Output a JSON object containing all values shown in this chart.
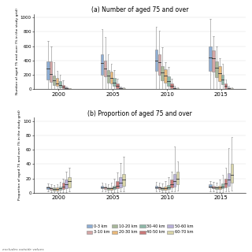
{
  "title_a": "(a) Number of aged 75 and over",
  "title_b": "(b) Proportion of aged 75 and over",
  "ylabel_a": "Number of aged 75 and over (% in the study grid)",
  "ylabel_b": "Proportion of aged 75 and over (% in the study grid)",
  "years": [
    2000,
    2005,
    2010,
    2015
  ],
  "categories": [
    "0-3 km",
    "3-10 km",
    "10-20 km",
    "20-30 km",
    "30-40 km",
    "40-50 km",
    "50-60 km",
    "60-70 km"
  ],
  "colors": [
    "#8dadd4",
    "#d4a5a5",
    "#a8b89a",
    "#e8b87a",
    "#8fb8a8",
    "#c87878",
    "#b8b0d8",
    "#d8d4a8"
  ],
  "footnote": "excludes outside values",
  "num_cats": 8,
  "boxes_a": {
    "2000": [
      {
        "q1": 130,
        "med": 290,
        "q3": 390,
        "whislo": 0,
        "whishi": 670
      },
      {
        "q1": 100,
        "med": 210,
        "q3": 390,
        "whislo": 0,
        "whishi": 590
      },
      {
        "q1": 60,
        "med": 120,
        "q3": 190,
        "whislo": 0,
        "whishi": 370
      },
      {
        "q1": 40,
        "med": 80,
        "q3": 160,
        "whislo": 0,
        "whishi": 250
      },
      {
        "q1": 20,
        "med": 55,
        "q3": 110,
        "whislo": 0,
        "whishi": 200
      },
      {
        "q1": 10,
        "med": 30,
        "q3": 60,
        "whislo": 0,
        "whishi": 120
      },
      {
        "q1": 3,
        "med": 8,
        "q3": 18,
        "whislo": 0,
        "whishi": 30
      },
      {
        "q1": 1,
        "med": 3,
        "q3": 8,
        "whislo": 0,
        "whishi": 15
      }
    ],
    "2005": [
      {
        "q1": 200,
        "med": 360,
        "q3": 480,
        "whislo": 0,
        "whishi": 840
      },
      {
        "q1": 180,
        "med": 290,
        "q3": 400,
        "whislo": 0,
        "whishi": 730
      },
      {
        "q1": 90,
        "med": 190,
        "q3": 260,
        "whislo": 0,
        "whishi": 490
      },
      {
        "q1": 75,
        "med": 155,
        "q3": 240,
        "whislo": 0,
        "whishi": 350
      },
      {
        "q1": 40,
        "med": 90,
        "q3": 160,
        "whislo": 0,
        "whishi": 270
      },
      {
        "q1": 15,
        "med": 40,
        "q3": 80,
        "whislo": 0,
        "whishi": 140
      },
      {
        "q1": 4,
        "med": 10,
        "q3": 22,
        "whislo": 0,
        "whishi": 35
      },
      {
        "q1": 1,
        "med": 4,
        "q3": 10,
        "whislo": 0,
        "whishi": 18
      }
    ],
    "2010": [
      {
        "q1": 250,
        "med": 400,
        "q3": 550,
        "whislo": 0,
        "whishi": 870
      },
      {
        "q1": 200,
        "med": 370,
        "q3": 490,
        "whislo": 0,
        "whishi": 810
      },
      {
        "q1": 120,
        "med": 230,
        "q3": 320,
        "whislo": 0,
        "whishi": 580
      },
      {
        "q1": 90,
        "med": 190,
        "q3": 280,
        "whislo": 0,
        "whishi": 380
      },
      {
        "q1": 50,
        "med": 110,
        "q3": 180,
        "whislo": 0,
        "whishi": 310
      },
      {
        "q1": 15,
        "med": 40,
        "q3": 80,
        "whislo": 0,
        "whishi": 140
      },
      {
        "q1": 4,
        "med": 12,
        "q3": 25,
        "whislo": 0,
        "whishi": 40
      },
      {
        "q1": 1,
        "med": 4,
        "q3": 10,
        "whislo": 0,
        "whishi": 20
      }
    ],
    "2015": [
      {
        "q1": 250,
        "med": 440,
        "q3": 600,
        "whislo": 0,
        "whishi": 980
      },
      {
        "q1": 240,
        "med": 430,
        "q3": 540,
        "whislo": 0,
        "whishi": 740
      },
      {
        "q1": 170,
        "med": 300,
        "q3": 390,
        "whislo": 0,
        "whishi": 600
      },
      {
        "q1": 110,
        "med": 220,
        "q3": 320,
        "whislo": 0,
        "whishi": 430
      },
      {
        "q1": 70,
        "med": 130,
        "q3": 200,
        "whislo": 0,
        "whishi": 350
      },
      {
        "q1": 15,
        "med": 40,
        "q3": 80,
        "whislo": 0,
        "whishi": 130
      },
      {
        "q1": 4,
        "med": 12,
        "q3": 26,
        "whislo": 0,
        "whishi": 42
      },
      {
        "q1": 1,
        "med": 5,
        "q3": 12,
        "whislo": 0,
        "whishi": 22
      }
    ]
  },
  "boxes_b": {
    "2000": [
      {
        "q1": 5,
        "med": 7,
        "q3": 9,
        "whislo": 2,
        "whishi": 13
      },
      {
        "q1": 4,
        "med": 6,
        "q3": 8,
        "whislo": 1,
        "whishi": 12
      },
      {
        "q1": 3,
        "med": 5,
        "q3": 7,
        "whislo": 1,
        "whishi": 11
      },
      {
        "q1": 3,
        "med": 5,
        "q3": 7,
        "whislo": 1,
        "whishi": 12
      },
      {
        "q1": 4,
        "med": 6,
        "q3": 9,
        "whislo": 1,
        "whishi": 15
      },
      {
        "q1": 5,
        "med": 9,
        "q3": 14,
        "whislo": 1,
        "whishi": 20
      },
      {
        "q1": 6,
        "med": 12,
        "q3": 18,
        "whislo": 1,
        "whishi": 30
      },
      {
        "q1": 8,
        "med": 16,
        "q3": 22,
        "whislo": 2,
        "whishi": 35
      }
    ],
    "2005": [
      {
        "q1": 6,
        "med": 8,
        "q3": 10,
        "whislo": 2,
        "whishi": 14
      },
      {
        "q1": 5,
        "med": 7,
        "q3": 9,
        "whislo": 2,
        "whishi": 13
      },
      {
        "q1": 4,
        "med": 6,
        "q3": 8,
        "whislo": 1,
        "whishi": 12
      },
      {
        "q1": 4,
        "med": 6,
        "q3": 8,
        "whislo": 1,
        "whishi": 14
      },
      {
        "q1": 5,
        "med": 7,
        "q3": 10,
        "whislo": 1,
        "whishi": 20
      },
      {
        "q1": 6,
        "med": 10,
        "q3": 16,
        "whislo": 1,
        "whishi": 28
      },
      {
        "q1": 8,
        "med": 14,
        "q3": 22,
        "whislo": 2,
        "whishi": 42
      },
      {
        "q1": 10,
        "med": 18,
        "q3": 26,
        "whislo": 2,
        "whishi": 50
      }
    ],
    "2010": [
      {
        "q1": 6,
        "med": 8,
        "q3": 10,
        "whislo": 2,
        "whishi": 15
      },
      {
        "q1": 5,
        "med": 7,
        "q3": 9,
        "whislo": 2,
        "whishi": 14
      },
      {
        "q1": 4,
        "med": 6,
        "q3": 8,
        "whislo": 1,
        "whishi": 13
      },
      {
        "q1": 4,
        "med": 6,
        "q3": 9,
        "whislo": 1,
        "whishi": 16
      },
      {
        "q1": 5,
        "med": 7,
        "q3": 11,
        "whislo": 1,
        "whishi": 22
      },
      {
        "q1": 7,
        "med": 12,
        "q3": 18,
        "whislo": 2,
        "whishi": 30
      },
      {
        "q1": 9,
        "med": 16,
        "q3": 26,
        "whislo": 2,
        "whishi": 65
      },
      {
        "q1": 12,
        "med": 20,
        "q3": 30,
        "whislo": 3,
        "whishi": 44
      }
    ],
    "2015": [
      {
        "q1": 7,
        "med": 9,
        "q3": 12,
        "whislo": 2,
        "whishi": 16
      },
      {
        "q1": 6,
        "med": 8,
        "q3": 10,
        "whislo": 2,
        "whishi": 15
      },
      {
        "q1": 5,
        "med": 7,
        "q3": 9,
        "whislo": 1,
        "whishi": 14
      },
      {
        "q1": 5,
        "med": 7,
        "q3": 10,
        "whislo": 1,
        "whishi": 18
      },
      {
        "q1": 6,
        "med": 9,
        "q3": 13,
        "whislo": 1,
        "whishi": 25
      },
      {
        "q1": 8,
        "med": 13,
        "q3": 20,
        "whislo": 2,
        "whishi": 35
      },
      {
        "q1": 10,
        "med": 18,
        "q3": 27,
        "whislo": 2,
        "whishi": 63
      },
      {
        "q1": 14,
        "med": 25,
        "q3": 40,
        "whislo": 3,
        "whishi": 78
      }
    ]
  }
}
